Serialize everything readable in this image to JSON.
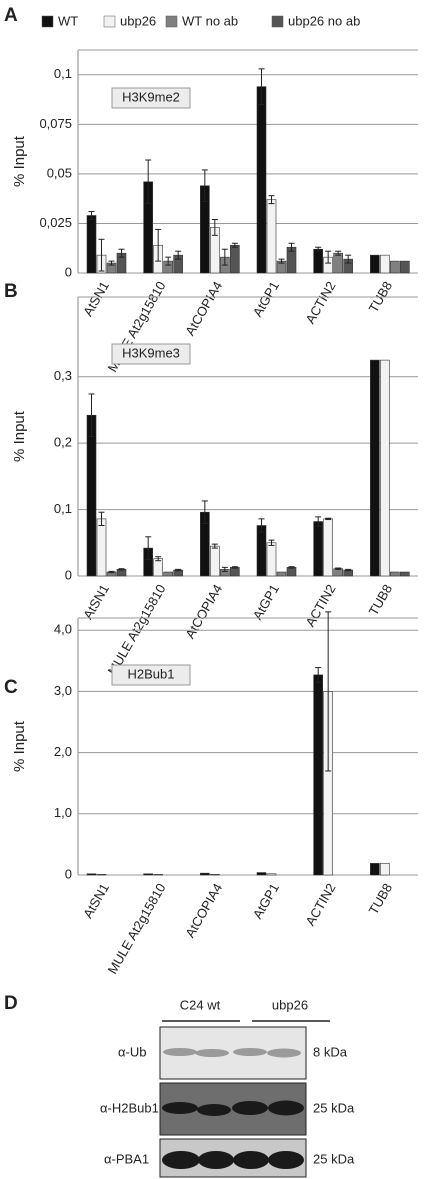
{
  "chart_data": [
    {
      "type": "bar",
      "label": "A",
      "ylabel": "% Input",
      "annotation": "H3K9me2",
      "categories": [
        "AtSN1",
        "MULE At2g15810",
        "AtCOPIA4",
        "AtGP1",
        "ACTIN2",
        "TUB8"
      ],
      "series": [
        {
          "name": "WT",
          "color": "#111111",
          "values": [
            0.029,
            0.046,
            0.044,
            0.094,
            0.012,
            0.009
          ],
          "errors": [
            0.002,
            0.011,
            0.008,
            0.009,
            0.001,
            null
          ]
        },
        {
          "name": "ubp26",
          "color": "#f2f2f2",
          "values": [
            0.009,
            0.014,
            0.023,
            0.037,
            0.008,
            0.009
          ],
          "errors": [
            0.008,
            0.008,
            0.004,
            0.002,
            0.003,
            null
          ]
        },
        {
          "name": "WT no ab",
          "color": "#808080",
          "values": [
            0.005,
            0.006,
            0.008,
            0.006,
            0.01,
            0.006
          ],
          "errors": [
            0.001,
            0.002,
            0.004,
            0.001,
            0.001,
            null
          ]
        },
        {
          "name": "ubp26 no ab",
          "color": "#555555",
          "values": [
            0.01,
            0.009,
            0.014,
            0.013,
            0.007,
            0.006
          ],
          "errors": [
            0.002,
            0.002,
            0.001,
            0.002,
            0.002,
            null
          ]
        }
      ],
      "ylim": [
        0,
        0.1125
      ],
      "yticks": [
        0,
        {
          "value": 0.025,
          "label": "0,025"
        },
        {
          "value": 0.05,
          "label": "0,05"
        },
        {
          "value": 0.075,
          "label": "0,075"
        },
        {
          "value": 0.1,
          "label": "0,1"
        }
      ],
      "grid": true
    },
    {
      "type": "bar",
      "label": "B",
      "ylabel": "% Input",
      "annotation": "H3K9me3",
      "categories": [
        "AtSN1",
        "MULE At2g15810",
        "AtCOPIA4",
        "AtGP1",
        "ACTIN2",
        "TUB8"
      ],
      "series": [
        {
          "color": "#111111",
          "values": [
            0.242,
            0.042,
            0.096,
            0.076,
            0.082,
            0.325
          ],
          "errors": [
            0.032,
            0.017,
            0.017,
            0.01,
            0.007,
            null
          ]
        },
        {
          "color": "#f2f2f2",
          "values": [
            0.086,
            0.026,
            0.045,
            0.05,
            0.086,
            0.325
          ],
          "errors": [
            0.01,
            0.003,
            0.003,
            0.004,
            0.001,
            null
          ]
        },
        {
          "color": "#808080",
          "values": [
            0.006,
            0.006,
            0.01,
            0.006,
            0.011,
            0.006
          ],
          "errors": [
            0.001,
            null,
            0.003,
            null,
            0.001,
            null
          ]
        },
        {
          "color": "#555555",
          "values": [
            0.01,
            0.009,
            0.013,
            0.013,
            0.009,
            0.006
          ],
          "errors": [
            0.001,
            0.001,
            0.001,
            0.001,
            0.001,
            null
          ]
        }
      ],
      "ylim": [
        0,
        0.42
      ],
      "yticks": [
        0,
        {
          "value": 0.1,
          "label": "0,1"
        },
        {
          "value": 0.2,
          "label": "0,2"
        },
        {
          "value": 0.3,
          "label": "0,3"
        }
      ],
      "grid": true
    },
    {
      "type": "bar",
      "label": "C",
      "ylabel": "% Input",
      "annotation": "H2Bub1",
      "categories": [
        "AtSN1",
        "MULE At2g15810",
        "AtCOPIA4",
        "AtGP1",
        "ACTIN2",
        "TUB8"
      ],
      "series": [
        {
          "color": "#111111",
          "values": [
            0.02,
            0.02,
            0.03,
            0.04,
            3.27,
            0.19
          ],
          "errors": [
            null,
            null,
            null,
            null,
            0.12,
            null
          ]
        },
        {
          "color": "#f2f2f2",
          "values": [
            0.01,
            0.01,
            0.01,
            0.02,
            3.0,
            0.19
          ],
          "errors": [
            null,
            null,
            null,
            null,
            1.3,
            null
          ]
        },
        {
          "color": "#808080",
          "values": [
            0,
            0,
            0,
            0,
            0,
            0
          ],
          "errors": [
            null,
            null,
            null,
            null,
            null,
            null
          ]
        },
        {
          "color": "#555555",
          "values": [
            0,
            0,
            0,
            0,
            0,
            0
          ],
          "errors": [
            null,
            null,
            null,
            null,
            null,
            null
          ]
        }
      ],
      "ylim": [
        0,
        4.2
      ],
      "yticks": [
        0,
        {
          "value": 1,
          "label": "1,0"
        },
        {
          "value": 2,
          "label": "2,0"
        },
        {
          "value": 3,
          "label": "3,0"
        },
        {
          "value": 4,
          "label": "4,0"
        }
      ],
      "grid": true
    }
  ],
  "blot": {
    "label": "D",
    "columns": [
      "C24 wt",
      "ubp26"
    ],
    "rows": [
      {
        "antibody": "α-Ub",
        "size": "8 kDa"
      },
      {
        "antibody": "α-H2Bub1",
        "size": "25 kDa"
      },
      {
        "antibody": "α-PBA1",
        "size": "25 kDa"
      }
    ]
  }
}
